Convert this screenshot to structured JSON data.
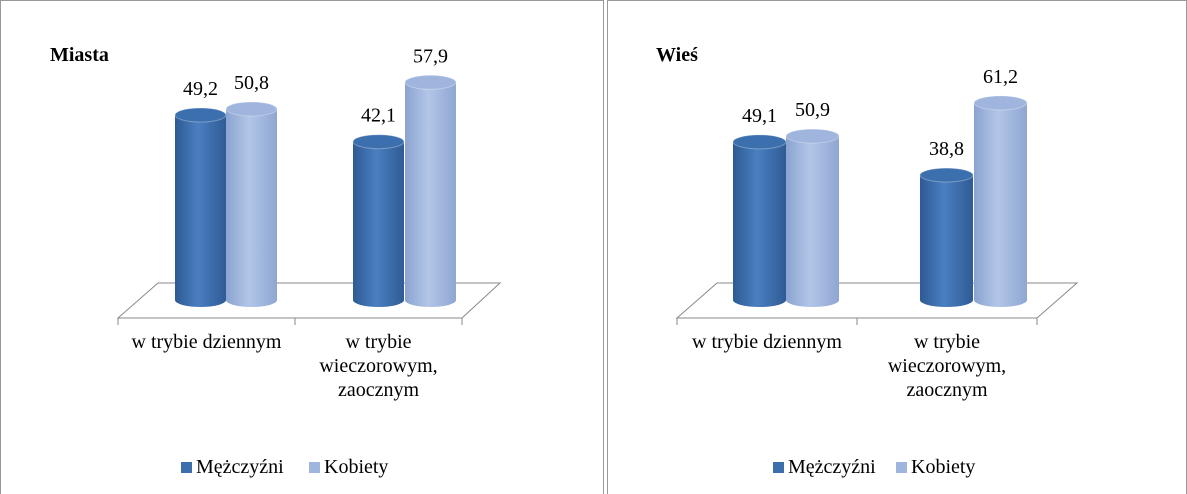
{
  "chart_data": [
    {
      "type": "bar",
      "title": "Miasta",
      "categories": [
        "w trybie dziennym",
        "w trybie wieczorowym, zaocznym"
      ],
      "series": [
        {
          "name": "Mężczyźni",
          "color": "#3c6fad",
          "values": [
            49.2,
            42.1
          ],
          "value_labels": [
            "49,2",
            "42,1"
          ]
        },
        {
          "name": "Kobiety",
          "color": "#9fb5de",
          "values": [
            50.8,
            57.9
          ],
          "value_labels": [
            "50,8",
            "57,9"
          ]
        }
      ]
    },
    {
      "type": "bar",
      "title": "Wieś",
      "categories": [
        "w trybie dziennym",
        "w trybie wieczorowym, zaocznym"
      ],
      "series": [
        {
          "name": "Mężczyźni",
          "color": "#3c6fad",
          "values": [
            49.1,
            38.8
          ],
          "value_labels": [
            "49,1",
            "38,8"
          ]
        },
        {
          "name": "Kobiety",
          "color": "#9fb5de",
          "values": [
            50.9,
            61.2
          ],
          "value_labels": [
            "50,9",
            "61,2"
          ]
        }
      ]
    }
  ]
}
